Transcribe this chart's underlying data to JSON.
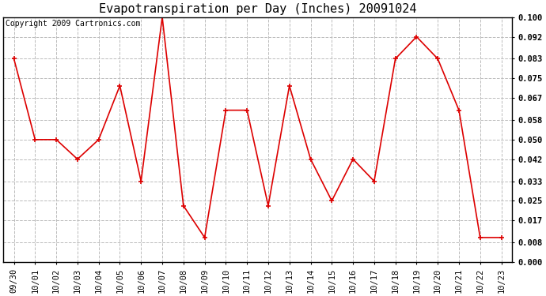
{
  "title": "Evapotranspiration per Day (Inches) 20091024",
  "copyright": "Copyright 2009 Cartronics.com",
  "x_labels": [
    "09/30",
    "10/01",
    "10/02",
    "10/03",
    "10/04",
    "10/05",
    "10/06",
    "10/07",
    "10/08",
    "10/09",
    "10/10",
    "10/11",
    "10/12",
    "10/13",
    "10/14",
    "10/15",
    "10/16",
    "10/17",
    "10/18",
    "10/19",
    "10/20",
    "10/21",
    "10/22",
    "10/23"
  ],
  "y_values": [
    0.083,
    0.05,
    0.05,
    0.042,
    0.05,
    0.072,
    0.033,
    0.1,
    0.023,
    0.01,
    0.062,
    0.062,
    0.023,
    0.072,
    0.042,
    0.025,
    0.042,
    0.033,
    0.083,
    0.092,
    0.083,
    0.062,
    0.01,
    0.01
  ],
  "line_color": "#dd0000",
  "marker": "+",
  "marker_size": 5,
  "line_width": 1.2,
  "ylim": [
    0.0,
    0.1
  ],
  "yticks": [
    0.0,
    0.008,
    0.017,
    0.025,
    0.033,
    0.042,
    0.05,
    0.058,
    0.067,
    0.075,
    0.083,
    0.092,
    0.1
  ],
  "grid_color": "#bbbbbb",
  "bg_color": "#ffffff",
  "title_fontsize": 11,
  "copyright_fontsize": 7,
  "tick_fontsize": 7.5
}
